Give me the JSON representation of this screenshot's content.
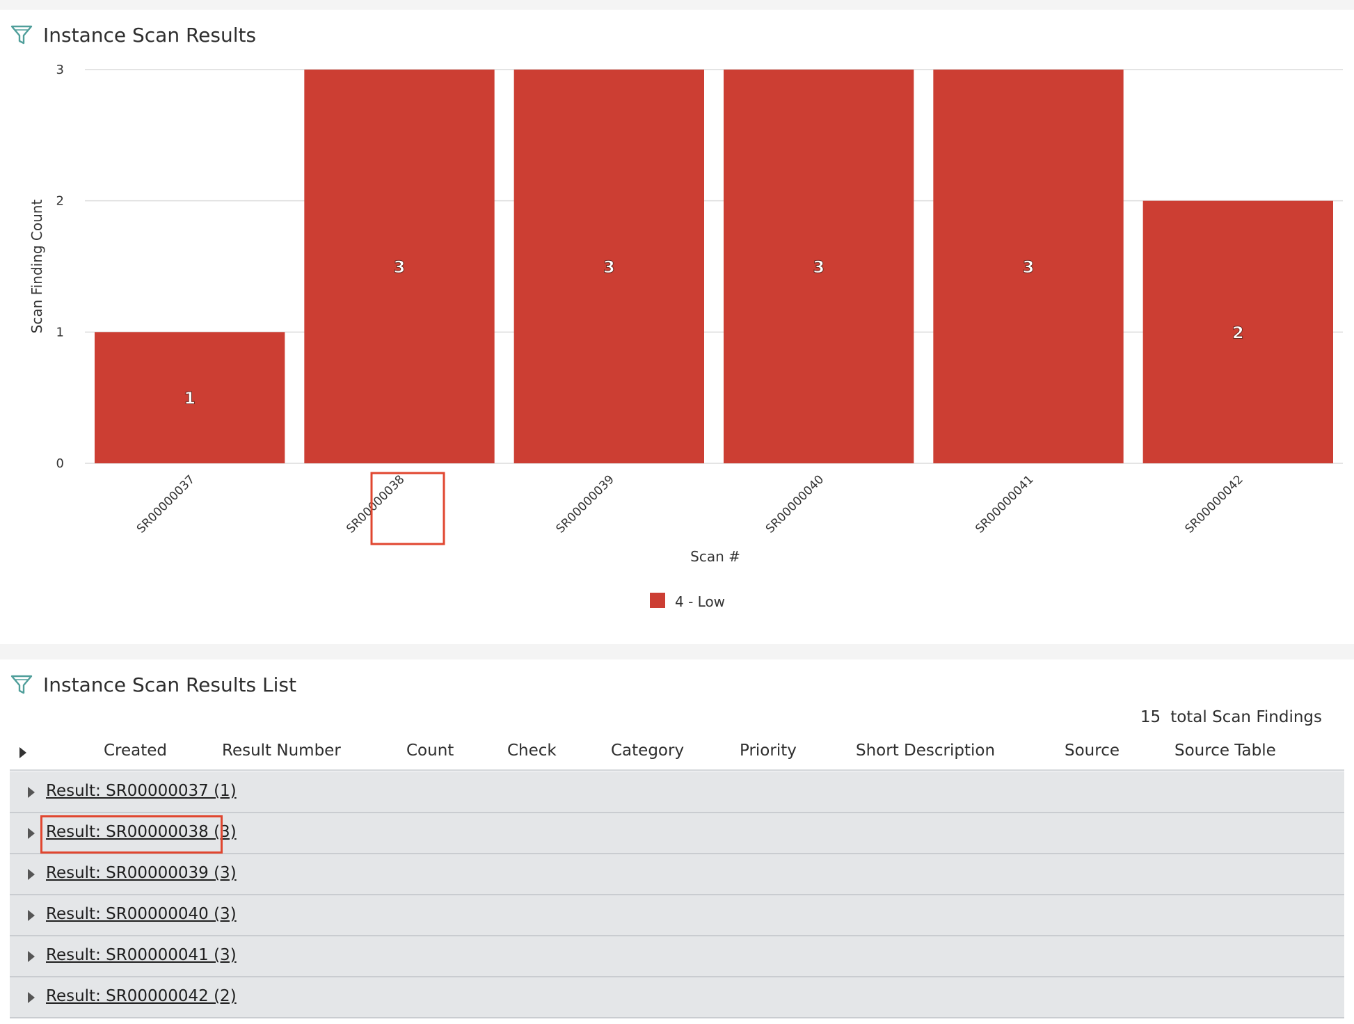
{
  "chart_panel": {
    "title": "Instance Scan Results",
    "filter_icon": "filter-icon"
  },
  "chart_data": {
    "type": "bar",
    "categories": [
      "SR00000037",
      "SR00000038",
      "SR00000039",
      "SR00000040",
      "SR00000041",
      "SR00000042"
    ],
    "series": [
      {
        "name": "4 - Low",
        "values": [
          1,
          3,
          3,
          3,
          3,
          2
        ],
        "color": "#cc3e33"
      }
    ],
    "xlabel": "Scan #",
    "ylabel": "Scan Finding Count",
    "ylim": [
      0,
      3
    ],
    "yticks": [
      "0",
      "1",
      "2",
      "3"
    ],
    "data_labels": [
      "1",
      "3",
      "3",
      "3",
      "3",
      "2"
    ],
    "grid": true,
    "legend": "bottom-center",
    "highlighted_category": "SR00000038"
  },
  "list_panel": {
    "title": "Instance Scan Results List",
    "filter_icon": "filter-icon",
    "total_count": "15",
    "total_label": "total Scan Findings",
    "columns": [
      "Created",
      "Result Number",
      "Count",
      "Check",
      "Category",
      "Priority",
      "Short Description",
      "Source",
      "Source Table"
    ],
    "rows": [
      {
        "label": "Result: SR00000037 (1)"
      },
      {
        "label": "Result: SR00000038 (3)"
      },
      {
        "label": "Result: SR00000039 (3)"
      },
      {
        "label": "Result: SR00000040 (3)"
      },
      {
        "label": "Result: SR00000041 (3)"
      },
      {
        "label": "Result: SR00000042 (2)"
      }
    ],
    "highlighted_row": "Result: SR00000038 (3)"
  },
  "colors": {
    "bar": "#cc3e33",
    "highlight": "#e0462f",
    "row_bg": "#e4e6e8",
    "icon": "#4f9e9a"
  }
}
